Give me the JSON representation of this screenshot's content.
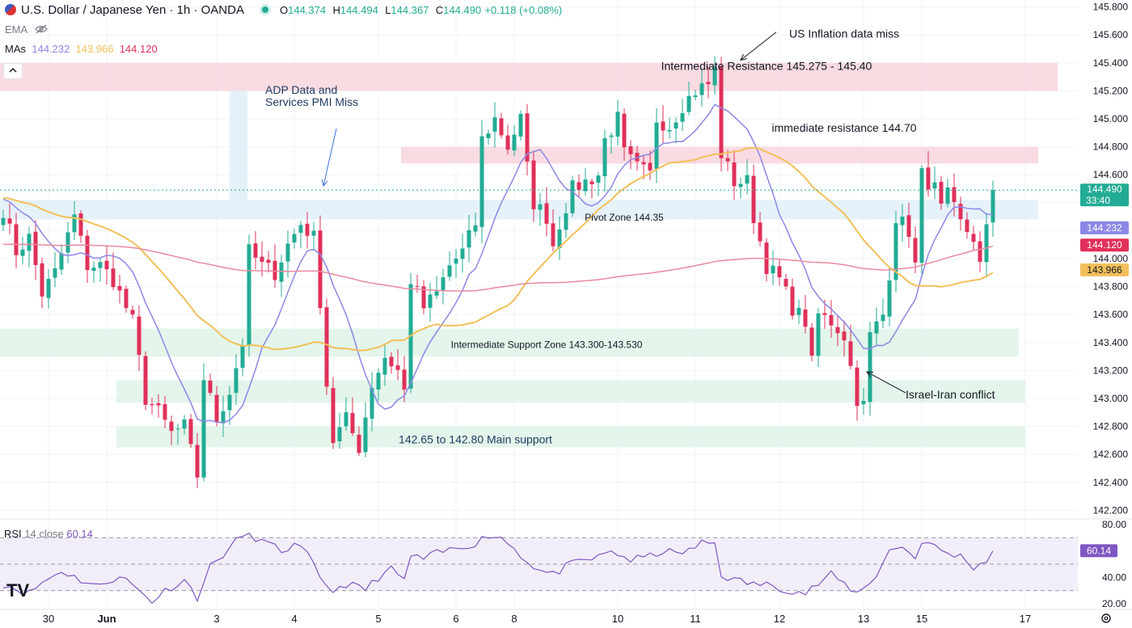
{
  "header": {
    "symbol": "U.S. Dollar / Japanese Yen · 1h · OANDA",
    "o_label": "O",
    "o": "144.374",
    "h_label": "H",
    "h": "144.494",
    "l_label": "L",
    "l": "144.367",
    "c_label": "C",
    "c": "144.490",
    "change": "+0.118 (+0.08%)",
    "ema_label": "EMA",
    "mas_label": "MAs",
    "ma1": "144.232",
    "ma2": "143.966",
    "ma3": "144.120",
    "rsi_label": "RSI",
    "rsi_params": "14 close",
    "rsi_value": "60.14",
    "collapse_icon": "chevron-up-icon",
    "logo": "TV"
  },
  "colors": {
    "up": "#22ab94",
    "down": "#e0305a",
    "ma_fast": "#8c87e6",
    "ma_slow": "#f2c05a",
    "ma_long": "#e98aa0",
    "rsi": "#7e57c2",
    "zone_resist": "#f8d5dd",
    "zone_support": "#dff3e7",
    "zone_pivot": "#e2f0f8"
  },
  "chart_data": {
    "type": "candlestick",
    "title": "U.S. Dollar / Japanese Yen · 1h · OANDA",
    "y_ticks": [
      "145.800",
      "145.600",
      "145.400",
      "145.200",
      "145.000",
      "144.800",
      "144.600",
      "144.400",
      "144.200",
      "144.000",
      "143.800",
      "143.600",
      "143.400",
      "143.200",
      "143.000",
      "142.800",
      "142.600",
      "142.400",
      "142.200"
    ],
    "ylim": [
      142.15,
      145.85
    ],
    "x_ticks": [
      {
        "label": "30",
        "bar": 7
      },
      {
        "label": "Jun",
        "bar": 16
      },
      {
        "label": "3",
        "bar": 33
      },
      {
        "label": "4",
        "bar": 45
      },
      {
        "label": "5",
        "bar": 58
      },
      {
        "label": "6",
        "bar": 70
      },
      {
        "label": "8",
        "bar": 79
      },
      {
        "label": "10",
        "bar": 95
      },
      {
        "label": "11",
        "bar": 107
      },
      {
        "label": "12",
        "bar": 120
      },
      {
        "label": "13",
        "bar": 133
      },
      {
        "label": "15",
        "bar": 142
      },
      {
        "label": "17",
        "bar": 158
      }
    ],
    "waypoints": [
      [
        0,
        144.35
      ],
      [
        2,
        144.05
      ],
      [
        4,
        144.15
      ],
      [
        6,
        143.75
      ],
      [
        8,
        143.9
      ],
      [
        11,
        144.3
      ],
      [
        13,
        143.95
      ],
      [
        15,
        143.95
      ],
      [
        17,
        143.85
      ],
      [
        20,
        143.55
      ],
      [
        22,
        143.0
      ],
      [
        24,
        142.9
      ],
      [
        26,
        142.75
      ],
      [
        28,
        142.8
      ],
      [
        30,
        142.45
      ],
      [
        31,
        143.15
      ],
      [
        33,
        142.85
      ],
      [
        35,
        143.05
      ],
      [
        37,
        143.4
      ],
      [
        38,
        144.05
      ],
      [
        40,
        143.95
      ],
      [
        42,
        143.9
      ],
      [
        44,
        144.1
      ],
      [
        46,
        144.25
      ],
      [
        48,
        144.15
      ],
      [
        49,
        143.7
      ],
      [
        50,
        143.1
      ],
      [
        51,
        142.7
      ],
      [
        53,
        142.85
      ],
      [
        55,
        142.65
      ],
      [
        57,
        143.1
      ],
      [
        59,
        143.3
      ],
      [
        61,
        143.2
      ],
      [
        62,
        143.05
      ],
      [
        63,
        143.85
      ],
      [
        65,
        143.65
      ],
      [
        67,
        143.75
      ],
      [
        69,
        143.95
      ],
      [
        71,
        144.05
      ],
      [
        73,
        144.25
      ],
      [
        74,
        144.85
      ],
      [
        76,
        145.0
      ],
      [
        78,
        144.8
      ],
      [
        80,
        145.0
      ],
      [
        81,
        144.65
      ],
      [
        82,
        144.4
      ],
      [
        84,
        144.3
      ],
      [
        85,
        144.1
      ],
      [
        86,
        144.25
      ],
      [
        88,
        144.5
      ],
      [
        90,
        144.55
      ],
      [
        92,
        144.6
      ],
      [
        93,
        144.85
      ],
      [
        95,
        145.0
      ],
      [
        96,
        144.75
      ],
      [
        98,
        144.65
      ],
      [
        100,
        144.6
      ],
      [
        101,
        145.0
      ],
      [
        103,
        144.95
      ],
      [
        105,
        145.1
      ],
      [
        107,
        145.2
      ],
      [
        109,
        145.25
      ],
      [
        110,
        145.35
      ],
      [
        111,
        144.75
      ],
      [
        113,
        144.55
      ],
      [
        115,
        144.55
      ],
      [
        116,
        144.3
      ],
      [
        118,
        143.95
      ],
      [
        120,
        143.85
      ],
      [
        122,
        143.65
      ],
      [
        124,
        143.55
      ],
      [
        125,
        143.25
      ],
      [
        126,
        143.6
      ],
      [
        128,
        143.55
      ],
      [
        130,
        143.45
      ],
      [
        132,
        143.0
      ],
      [
        133,
        142.95
      ],
      [
        134,
        143.45
      ],
      [
        136,
        143.6
      ],
      [
        137,
        143.9
      ],
      [
        138,
        144.3
      ],
      [
        140,
        144.2
      ],
      [
        141,
        143.95
      ],
      [
        142,
        144.6
      ],
      [
        144,
        144.5
      ],
      [
        145,
        144.35
      ],
      [
        146,
        144.45
      ],
      [
        148,
        144.25
      ],
      [
        150,
        144.15
      ],
      [
        151,
        143.95
      ],
      [
        152,
        144.2
      ],
      [
        153,
        144.49
      ]
    ],
    "candles_count": 154,
    "last_price": "144.490",
    "last_countdown": "33:40",
    "ma_fast_label": "144.232",
    "ma_long_label": "144.120",
    "ma_slow_label": "143.966",
    "zones": [
      {
        "name": "intermediate-resistance",
        "from_bar": 0,
        "to_bar": 163,
        "low": 145.2,
        "high": 145.4,
        "kind": "resist",
        "label": "Intermediate Resistance 145.275 - 145.40",
        "label_bar": 118,
        "label_price": 145.37
      },
      {
        "name": "immediate-resistance",
        "from_bar": 62,
        "to_bar": 160,
        "low": 144.68,
        "high": 144.8,
        "kind": "resist",
        "label": "immediate resistance 144.70",
        "label_bar": 130,
        "label_price": 144.93
      },
      {
        "name": "pivot-zone",
        "from_bar": 0,
        "to_bar": 160,
        "low": 144.28,
        "high": 144.42,
        "kind": "pivot",
        "label": "Pivot Zone 144.35",
        "label_bar": 96,
        "label_price": 144.29
      },
      {
        "name": "intermediate-support",
        "from_bar": 0,
        "to_bar": 157,
        "low": 143.3,
        "high": 143.5,
        "kind": "support",
        "label": "Intermediate Support Zone 143.300-143.530",
        "label_bar": 84,
        "label_price": 143.38
      },
      {
        "name": "support-mid",
        "from_bar": 18,
        "to_bar": 158,
        "low": 142.97,
        "high": 143.13,
        "kind": "support",
        "label": "",
        "label_bar": 0,
        "label_price": 0
      },
      {
        "name": "main-support",
        "from_bar": 18,
        "to_bar": 158,
        "low": 142.65,
        "high": 142.8,
        "kind": "support",
        "label": "142.65 to 142.80 Main support",
        "label_bar": 73,
        "label_price": 142.7
      }
    ],
    "annotations": [
      {
        "name": "adp-annotation",
        "lines": [
          "ADP Data and",
          "Services PMI Miss"
        ],
        "bar": 41,
        "price": 145.18,
        "arrow_from": [
          51.5,
          144.93
        ],
        "arrow_to": [
          49.5,
          144.52
        ]
      },
      {
        "name": "us-inflation-annotation",
        "lines": [
          "US Inflation data miss"
        ],
        "bar": 122,
        "price": 145.58,
        "arrow_from": [
          119.5,
          145.62
        ],
        "arrow_to": [
          114,
          145.42
        ]
      },
      {
        "name": "israel-iran-annotation",
        "lines": [
          "Israel-Iran conflict"
        ],
        "bar": 140,
        "price": 143.0,
        "arrow_from": [
          139.5,
          143.04
        ],
        "arrow_to": [
          133.5,
          143.19
        ]
      }
    ],
    "rsi": {
      "name": "RSI 14 close",
      "ticks": [
        "80.00",
        "40.00",
        "20.00"
      ],
      "ylim": [
        17,
        83
      ],
      "upper": 70,
      "middle": 50,
      "lower": 30,
      "last": "60.14",
      "waypoints": [
        [
          0,
          35
        ],
        [
          4,
          28
        ],
        [
          6,
          36
        ],
        [
          9,
          45
        ],
        [
          12,
          38
        ],
        [
          15,
          33
        ],
        [
          18,
          42
        ],
        [
          21,
          30
        ],
        [
          23,
          22
        ],
        [
          25,
          30
        ],
        [
          28,
          38
        ],
        [
          30,
          25
        ],
        [
          32,
          48
        ],
        [
          35,
          62
        ],
        [
          37,
          72
        ],
        [
          39,
          70
        ],
        [
          41,
          65
        ],
        [
          43,
          60
        ],
        [
          45,
          64
        ],
        [
          47,
          58
        ],
        [
          49,
          38
        ],
        [
          51,
          30
        ],
        [
          53,
          35
        ],
        [
          56,
          31
        ],
        [
          58,
          40
        ],
        [
          60,
          46
        ],
        [
          62,
          38
        ],
        [
          63,
          56
        ],
        [
          65,
          54
        ],
        [
          67,
          58
        ],
        [
          70,
          62
        ],
        [
          73,
          66
        ],
        [
          75,
          72
        ],
        [
          77,
          70
        ],
        [
          79,
          62
        ],
        [
          81,
          52
        ],
        [
          83,
          45
        ],
        [
          85,
          42
        ],
        [
          87,
          48
        ],
        [
          89,
          52
        ],
        [
          92,
          55
        ],
        [
          94,
          60
        ],
        [
          97,
          53
        ],
        [
          100,
          56
        ],
        [
          102,
          60
        ],
        [
          104,
          58
        ],
        [
          106,
          60
        ],
        [
          108,
          66
        ],
        [
          110,
          66
        ],
        [
          111,
          42
        ],
        [
          113,
          38
        ],
        [
          116,
          35
        ],
        [
          119,
          34
        ],
        [
          121,
          31
        ],
        [
          124,
          28
        ],
        [
          126,
          35
        ],
        [
          128,
          42
        ],
        [
          130,
          35
        ],
        [
          132,
          28
        ],
        [
          133,
          32
        ],
        [
          135,
          42
        ],
        [
          137,
          60
        ],
        [
          139,
          64
        ],
        [
          141,
          54
        ],
        [
          142,
          68
        ],
        [
          144,
          63
        ],
        [
          146,
          58
        ],
        [
          148,
          56
        ],
        [
          150,
          48
        ],
        [
          152,
          52
        ],
        [
          153,
          60
        ]
      ]
    }
  }
}
